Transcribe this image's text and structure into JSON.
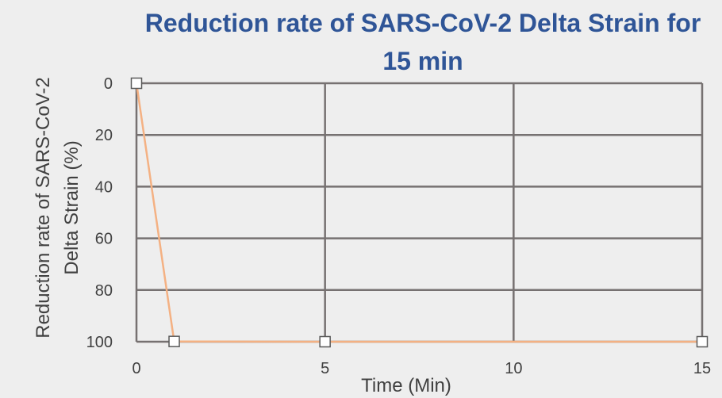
{
  "chart_data": {
    "type": "line",
    "title_lines": [
      "Reduction rate of SARS-CoV-2 Delta Strain for",
      "15 min"
    ],
    "xlabel": "Time (Min)",
    "ylabel_lines": [
      "Reduction rate of SARS-CoV-2",
      "Delta Strain (%)"
    ],
    "xlim": [
      0,
      15
    ],
    "ylim": [
      0,
      100
    ],
    "y_reversed": true,
    "x_ticks": [
      0,
      5,
      10,
      15
    ],
    "y_ticks": [
      0,
      20,
      40,
      60,
      80,
      100
    ],
    "grid": true,
    "series": [
      {
        "color": "#f4b183",
        "marker": "square",
        "x": [
          0,
          1,
          5,
          15
        ],
        "y": [
          0,
          99.9,
          100,
          100
        ]
      }
    ],
    "colors": {
      "title": "#2f5597",
      "grid": "#767171",
      "text": "#404040",
      "marker_fill": "#ffffff",
      "marker_stroke": "#595959",
      "background": "#eeeeee"
    }
  }
}
